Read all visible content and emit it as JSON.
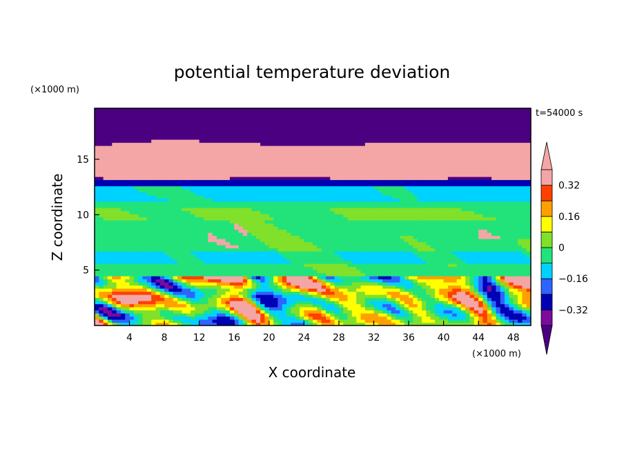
{
  "chart_data": {
    "type": "heatmap",
    "title": "potential temperature deviation",
    "xlabel": "X coordinate",
    "ylabel": "Z coordinate",
    "x_unit": "(×1000 m)",
    "y_unit": "(×1000 m)",
    "time_label": "t=54000 s",
    "xlim": [
      0,
      50
    ],
    "ylim": [
      0,
      19.6
    ],
    "x_ticks": [
      4,
      8,
      12,
      16,
      20,
      24,
      28,
      32,
      36,
      40,
      44,
      48
    ],
    "y_ticks": [
      5,
      10,
      15
    ],
    "colorbar": {
      "levels": [
        -0.4,
        -0.32,
        -0.24,
        -0.16,
        -0.08,
        0,
        0.08,
        0.16,
        0.24,
        0.32,
        0.4
      ],
      "colors": [
        "#4b0082",
        "#7b0a9e",
        "#0000b4",
        "#2d64ff",
        "#00d2ff",
        "#22e37a",
        "#80e02a",
        "#ffff00",
        "#ffa000",
        "#ff4000",
        "#f4a6a6",
        "#f4a6a6"
      ],
      "tick_values": [
        -0.32,
        -0.16,
        0,
        0.16,
        0.32
      ],
      "tick_labels": [
        "−0.32",
        "−0.16",
        "0",
        "0.16",
        "0.32"
      ],
      "extend": "both"
    },
    "bands": [
      {
        "z": [
          0,
          4.6
        ],
        "pattern": "turbulent"
      },
      {
        "z": [
          4.6,
          12.6
        ],
        "pattern": "near-zero"
      },
      {
        "z": [
          12.6,
          19.6
        ],
        "pattern": "alternating-layers"
      }
    ],
    "grid": false
  }
}
